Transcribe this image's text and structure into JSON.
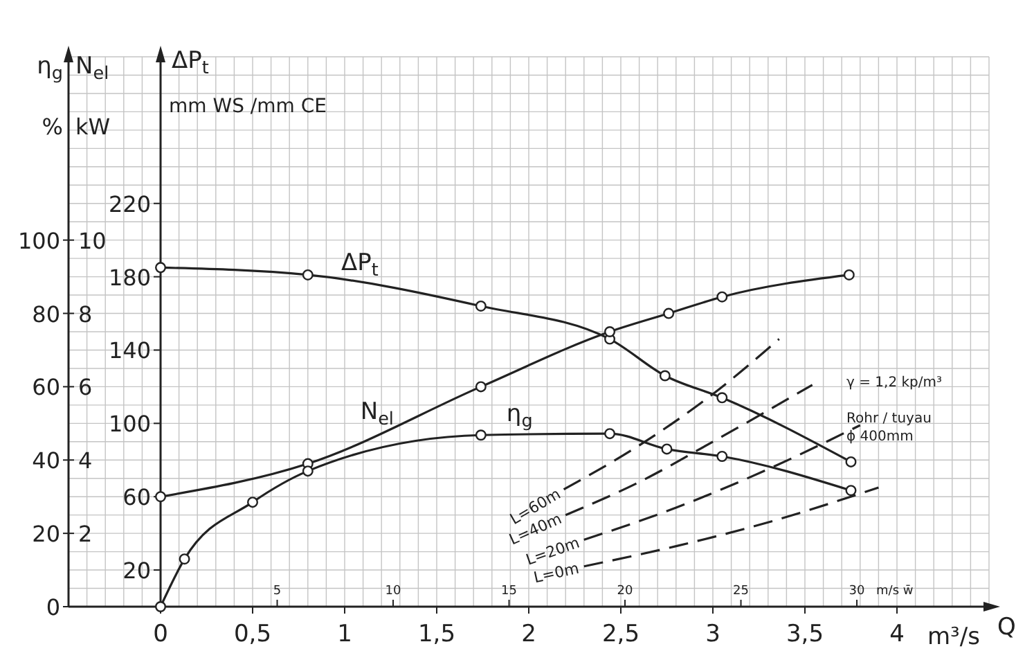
{
  "chart_data": {
    "type": "line",
    "xlabel": "m³/s Q",
    "ylabel": "η$_{g}$ %",
    "y2label": "N$_{el}$ kW",
    "y3label": "ΔP$_{t}$ mm WS /mm CE",
    "x2label": "m/s w̄",
    "xlim": [
      -0.5,
      4.5
    ],
    "xticks": [
      0,
      {
        "value": 0.5,
        "label": "0,5"
      },
      1,
      {
        "value": 1.5,
        "label": "1,5"
      },
      2,
      {
        "value": 2.5,
        "label": "2,5"
      },
      3,
      {
        "value": 3.5,
        "label": "3,5"
      },
      4
    ],
    "x2lim": [
      -4,
      35.7
    ],
    "x2ticks": [
      5,
      10,
      15,
      20,
      25,
      30
    ],
    "ylim": [
      0,
      150
    ],
    "yticks": [
      0,
      20,
      40,
      60,
      80,
      100
    ],
    "y2lim": [
      0,
      15
    ],
    "y2ticks": [
      2,
      4,
      6,
      8,
      10
    ],
    "y3lim": [
      0,
      300
    ],
    "y3ticks": [
      20,
      60,
      100,
      140,
      180,
      220
    ],
    "grid": true,
    "series": [
      {
        "name": "ΔP$_{t}$",
        "color": "#222222",
        "axis": "y3",
        "marker": "circle",
        "line_style": "solid",
        "x": [
          0,
          0.8,
          1.74,
          2.44,
          2.74,
          3.05,
          3.75
        ],
        "values": [
          185,
          181,
          164,
          146,
          126,
          114,
          79
        ]
      },
      {
        "name": "N$_{el}$",
        "color": "#222222",
        "axis": "y2",
        "marker": "circle",
        "line_style": "solid",
        "x": [
          0,
          0.8,
          1.74,
          2.44,
          2.76,
          3.05,
          3.74
        ],
        "values": [
          3.0,
          3.9,
          6.0,
          7.5,
          8.0,
          8.45,
          9.05
        ]
      },
      {
        "name": "η$_{g}$",
        "color": "#222222",
        "axis": "y",
        "marker": "circle",
        "line_style": "solid",
        "x": [
          0,
          0.13,
          0.5,
          0.8,
          1.74,
          2.44,
          2.75,
          3.05,
          3.75
        ],
        "values": [
          0,
          13,
          28.5,
          37,
          46.8,
          47.2,
          43,
          41,
          31.7
        ]
      },
      {
        "name": "L=60m",
        "color": "#222222",
        "axis": "y3",
        "marker": "none",
        "line_style": "dashed",
        "x": [
          2.19,
          2.6,
          3.0,
          3.36
        ],
        "values": [
          64,
          88,
          116,
          146
        ]
      },
      {
        "name": "L=40m",
        "color": "#222222",
        "axis": "y3",
        "marker": "none",
        "line_style": "dashed",
        "x": [
          2.2,
          2.6,
          3.0,
          3.54
        ],
        "values": [
          50,
          68,
          90,
          121
        ]
      },
      {
        "name": "L=20m",
        "color": "#222222",
        "axis": "y3",
        "marker": "none",
        "line_style": "dashed",
        "x": [
          2.3,
          2.8,
          3.3,
          3.8
        ],
        "values": [
          36.5,
          54,
          75,
          99
        ]
      },
      {
        "name": "L=0m",
        "color": "#222222",
        "axis": "y3",
        "marker": "none",
        "line_style": "dashed",
        "x": [
          2.3,
          2.8,
          3.3,
          3.9
        ],
        "values": [
          22,
          33,
          46,
          65
        ]
      }
    ],
    "annotations": [
      "γ = 1,2 kp/m³",
      "Rohr / tuyau",
      "ϕ 400mm"
    ]
  }
}
